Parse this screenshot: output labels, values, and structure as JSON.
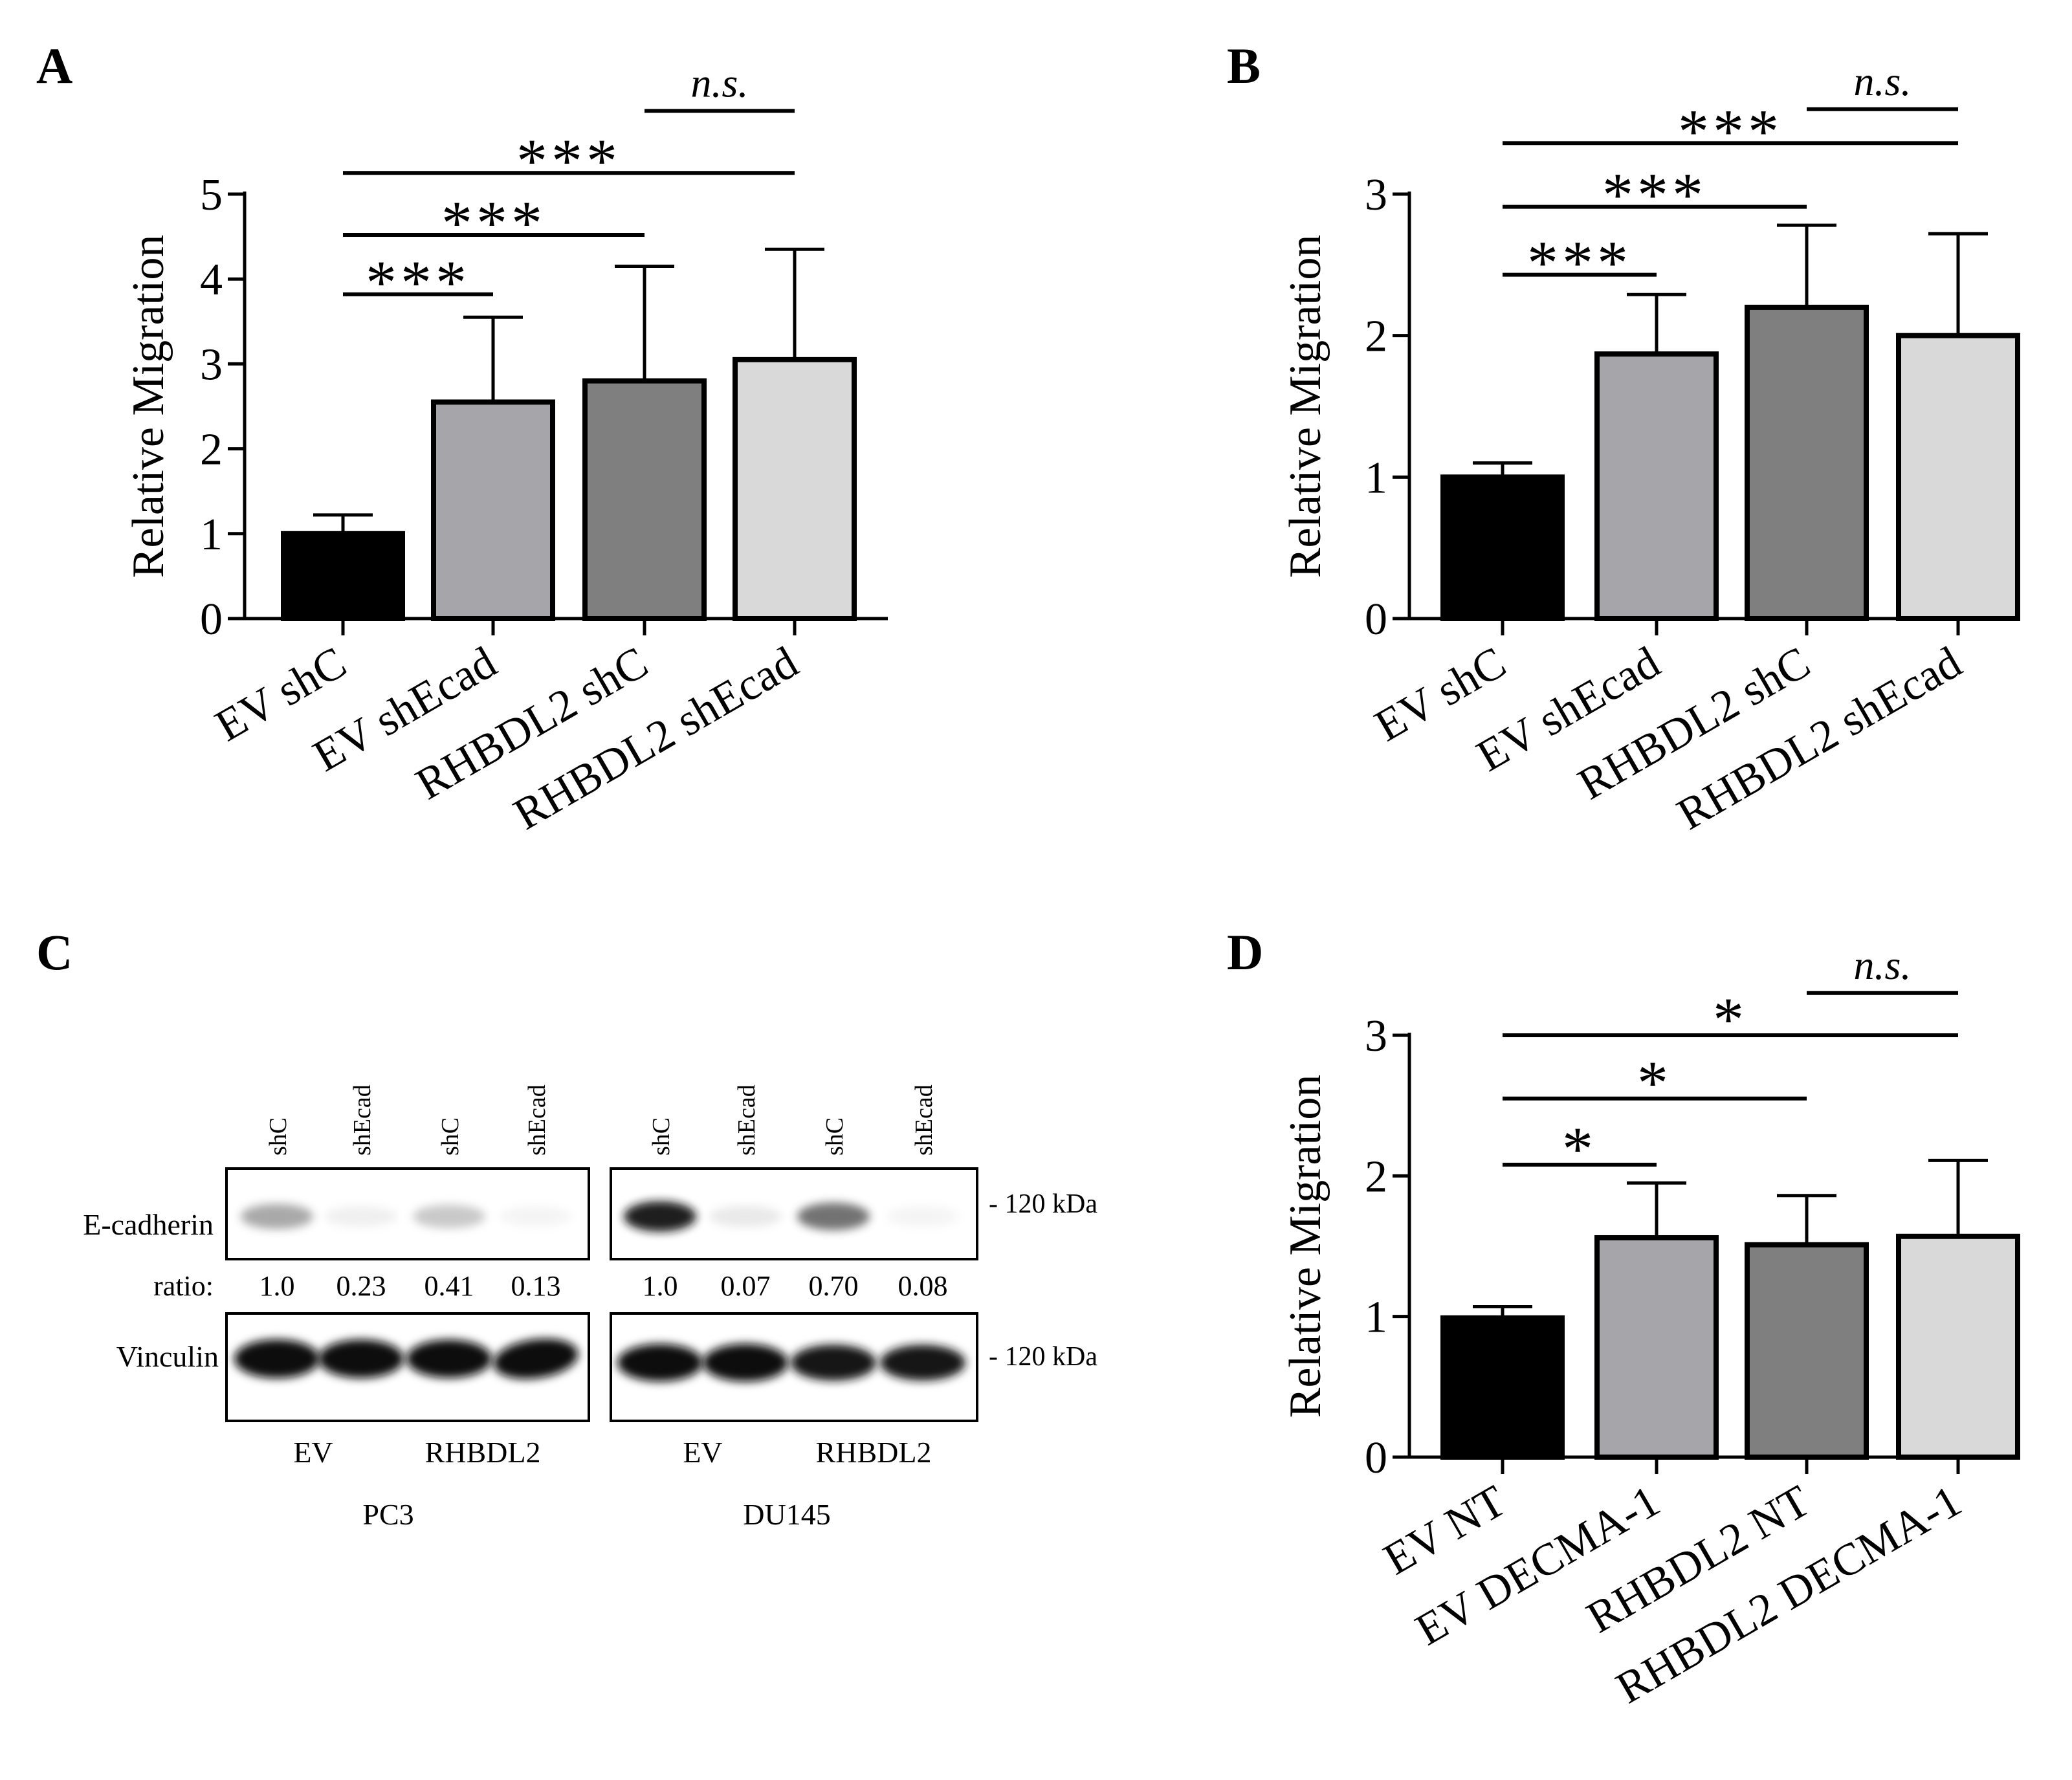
{
  "panels": {
    "A": {
      "label": "A"
    },
    "B": {
      "label": "B"
    },
    "C": {
      "label": "C"
    },
    "D": {
      "label": "D"
    }
  },
  "chart_data": [
    {
      "panel": "A",
      "type": "bar",
      "ylabel": "Relative Migration",
      "ylim": [
        0,
        5
      ],
      "yticks": [
        0,
        1,
        2,
        3,
        4,
        5
      ],
      "categories": [
        "EV shC",
        "EV shEcad",
        "RHBDL2 shC",
        "RHBDL2 shEcad"
      ],
      "values": [
        1.0,
        2.55,
        2.8,
        3.05
      ],
      "errors": [
        0.22,
        1.0,
        1.35,
        1.3
      ],
      "colors": [
        "#000000",
        "#a6a6aa",
        "#7f7f7f",
        "#d9d9d9"
      ],
      "comparisons": [
        {
          "from": 0,
          "to": 1,
          "label": "***",
          "italic": false,
          "level": 3.82
        },
        {
          "from": 0,
          "to": 2,
          "label": "***",
          "italic": false,
          "level": 4.52
        },
        {
          "from": 0,
          "to": 3,
          "label": "***",
          "italic": false,
          "level": 5.25
        },
        {
          "from": 2,
          "to": 3,
          "label": "n.s.",
          "italic": true,
          "level": 5.98
        }
      ]
    },
    {
      "panel": "B",
      "type": "bar",
      "ylabel": "Relative Migration",
      "ylim": [
        0,
        3
      ],
      "yticks": [
        0,
        1,
        2,
        3
      ],
      "categories": [
        "EV shC",
        "EV shEcad",
        "RHBDL2 shC",
        "RHBDL2 shEcad"
      ],
      "values": [
        1.0,
        1.87,
        2.2,
        2.0
      ],
      "errors": [
        0.1,
        0.42,
        0.58,
        0.72
      ],
      "colors": [
        "#000000",
        "#a6a6aa",
        "#7f7f7f",
        "#d9d9d9"
      ],
      "comparisons": [
        {
          "from": 0,
          "to": 1,
          "label": "***",
          "italic": false,
          "level": 2.43
        },
        {
          "from": 0,
          "to": 2,
          "label": "***",
          "italic": false,
          "level": 2.91
        },
        {
          "from": 0,
          "to": 3,
          "label": "***",
          "italic": false,
          "level": 3.36
        },
        {
          "from": 2,
          "to": 3,
          "label": "n.s.",
          "italic": true,
          "level": 3.6
        }
      ]
    },
    {
      "panel": "D",
      "type": "bar",
      "ylabel": "Relative Migration",
      "ylim": [
        0,
        3
      ],
      "yticks": [
        0,
        1,
        2,
        3
      ],
      "categories": [
        "EV NT",
        "EV DECMA-1",
        "RHBDL2 NT",
        "RHBDL2 DECMA-1"
      ],
      "values": [
        0.99,
        1.56,
        1.51,
        1.57
      ],
      "errors": [
        0.08,
        0.39,
        0.35,
        0.54
      ],
      "colors": [
        "#000000",
        "#a6a6aa",
        "#7f7f7f",
        "#d9d9d9"
      ],
      "comparisons": [
        {
          "from": 0,
          "to": 1,
          "label": "*",
          "italic": false,
          "level": 2.08
        },
        {
          "from": 0,
          "to": 2,
          "label": "*",
          "italic": false,
          "level": 2.55
        },
        {
          "from": 0,
          "to": 3,
          "label": "*",
          "italic": false,
          "level": 3.0
        },
        {
          "from": 2,
          "to": 3,
          "label": "n.s.",
          "italic": true,
          "level": 3.3
        }
      ]
    }
  ],
  "blot": {
    "lane_labels": [
      "shC",
      "shEcad",
      "shC",
      "shEcad",
      "shC",
      "shEcad",
      "shC",
      "shEcad"
    ],
    "ecadherin_label": "E-cadherin",
    "ratio_label": "ratio:",
    "ratios": [
      "1.0",
      "0.23",
      "0.41",
      "0.13",
      "1.0",
      "0.07",
      "0.70",
      "0.08"
    ],
    "ecadherin_intensity": [
      0.5,
      0.1,
      0.35,
      0.05,
      0.95,
      0.15,
      0.7,
      0.05
    ],
    "vinculin_label": "Vinculin",
    "vinculin_intensity": [
      1.0,
      0.98,
      0.96,
      1.0,
      0.9,
      0.92,
      0.78,
      0.76
    ],
    "marker_label_top": "- 120 kDa",
    "marker_label_bottom": "- 120 kDa",
    "groups": [
      "EV",
      "RHBDL2",
      "EV",
      "RHBDL2"
    ],
    "cell_lines": [
      "PC3",
      "DU145"
    ]
  }
}
